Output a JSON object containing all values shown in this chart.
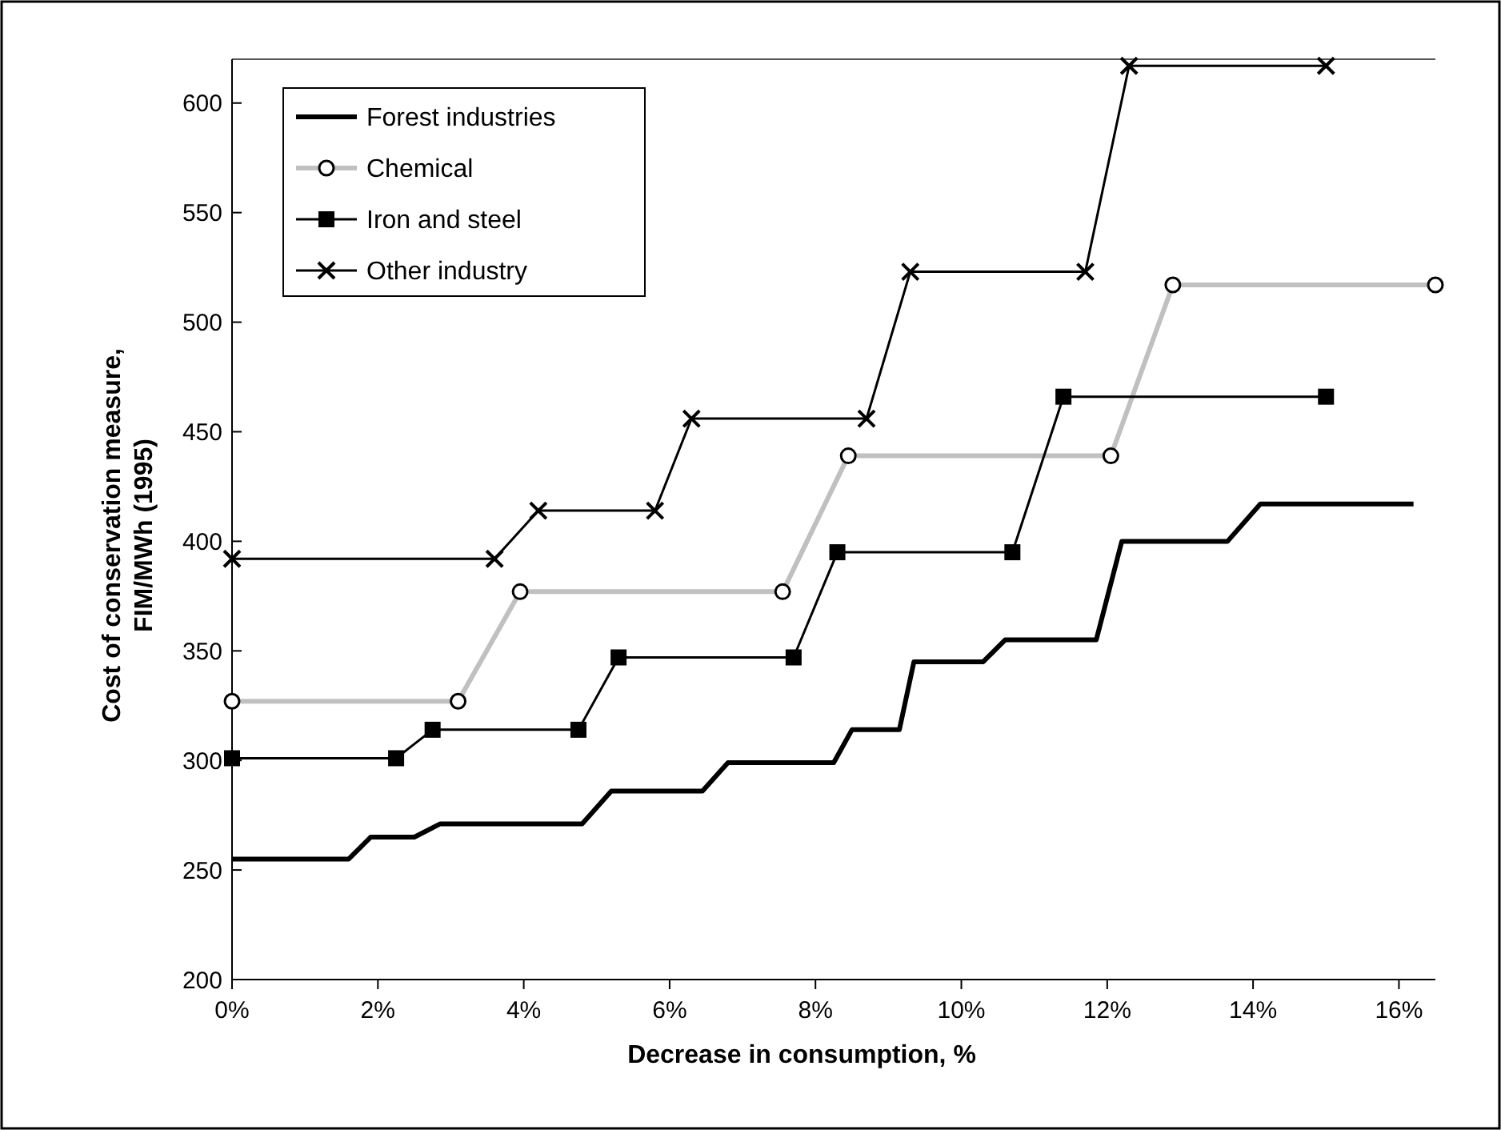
{
  "chart_data": {
    "type": "line",
    "xlabel": "Decrease in consumption, %",
    "ylabel": "Cost of conservation measure,\nFIM/MWh (1995)",
    "xlim": [
      0,
      16.5
    ],
    "ylim": [
      200,
      620
    ],
    "xticks": [
      {
        "value": 0,
        "label": "0%"
      },
      {
        "value": 2,
        "label": "2%"
      },
      {
        "value": 4,
        "label": "4%"
      },
      {
        "value": 6,
        "label": "6%"
      },
      {
        "value": 8,
        "label": "8%"
      },
      {
        "value": 10,
        "label": "10%"
      },
      {
        "value": 12,
        "label": "12%"
      },
      {
        "value": 14,
        "label": "14%"
      },
      {
        "value": 16,
        "label": "16%"
      }
    ],
    "yticks": [
      200,
      250,
      300,
      350,
      400,
      450,
      500,
      550,
      600
    ],
    "grid": false,
    "legend": "top left",
    "line_style": "solid",
    "series": [
      {
        "name": "Forest industries",
        "color": "#000000",
        "marker": "none",
        "x": [
          0,
          1.6,
          1.9,
          2.5,
          2.85,
          4.8,
          5.2,
          6.45,
          6.8,
          8.25,
          8.5,
          9.15,
          9.35,
          10.3,
          10.6,
          11.85,
          12.2,
          13.65,
          14.1,
          16.2
        ],
        "values": [
          255,
          255,
          265,
          265,
          271,
          271,
          286,
          286,
          299,
          299,
          314,
          314,
          345,
          345,
          355,
          355,
          400,
          400,
          417,
          417
        ]
      },
      {
        "name": "Chemical",
        "color": "#c0c0c0",
        "marker": "circle",
        "x": [
          0,
          3.1,
          3.95,
          7.55,
          8.45,
          12.05,
          12.9,
          16.5
        ],
        "values": [
          327,
          327,
          377,
          377,
          439,
          439,
          517,
          517
        ]
      },
      {
        "name": "Iron and steel",
        "color": "#000000",
        "marker": "square",
        "x": [
          0,
          2.25,
          2.75,
          4.75,
          5.3,
          7.7,
          8.3,
          10.7,
          11.4,
          15.0
        ],
        "values": [
          301,
          301,
          314,
          314,
          347,
          347,
          395,
          395,
          466,
          466
        ]
      },
      {
        "name": "Other industry",
        "color": "#000000",
        "marker": "cross",
        "x": [
          0,
          3.6,
          4.2,
          5.8,
          6.3,
          8.7,
          9.3,
          11.7,
          12.3,
          15.0
        ],
        "values": [
          392,
          392,
          414,
          414,
          456,
          456,
          523,
          523,
          617,
          617
        ]
      }
    ]
  }
}
